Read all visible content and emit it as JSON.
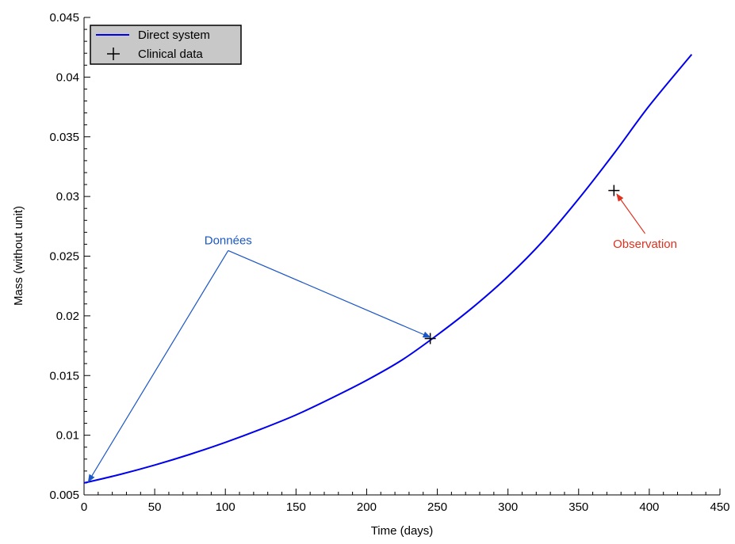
{
  "chart_data": {
    "type": "line",
    "xlabel": "Time (days)",
    "ylabel": "Mass (without unit)",
    "xlim": [
      0,
      450
    ],
    "ylim": [
      0.005,
      0.045
    ],
    "xticks": [
      0,
      50,
      100,
      150,
      200,
      250,
      300,
      350,
      400,
      450
    ],
    "yticks": [
      0.005,
      0.01,
      0.015,
      0.02,
      0.025,
      0.03,
      0.035,
      0.04,
      0.045
    ],
    "x_tick_labels": [
      "0",
      "50",
      "100",
      "150",
      "200",
      "250",
      "300",
      "350",
      "400",
      "450"
    ],
    "y_tick_labels": [
      "0.005",
      "0.01",
      "0.015",
      "0.02",
      "0.025",
      "0.03",
      "0.035",
      "0.04",
      "0.045"
    ],
    "grid": false,
    "legend_position": "top-left",
    "series": [
      {
        "name": "Direct system",
        "kind": "line",
        "color": "#0000ee",
        "x": [
          0,
          25,
          50,
          75,
          100,
          125,
          150,
          175,
          200,
          225,
          250,
          275,
          300,
          325,
          350,
          375,
          400,
          430
        ],
        "y": [
          0.006,
          0.0067,
          0.0075,
          0.0084,
          0.0094,
          0.0105,
          0.0117,
          0.0131,
          0.0146,
          0.0163,
          0.0184,
          0.0207,
          0.0233,
          0.0263,
          0.0298,
          0.0336,
          0.0376,
          0.0419
        ]
      },
      {
        "name": "Clinical data",
        "kind": "marker",
        "marker": "plus",
        "color": "#000000",
        "x": [
          245,
          375
        ],
        "y": [
          0.0181,
          0.0305
        ]
      }
    ],
    "annotations": [
      {
        "text": "Données",
        "color": "#1a56c4",
        "anchor": {
          "x": 102,
          "y": 0.026
        },
        "arrows_to": [
          {
            "x": 3,
            "y": 0.0061
          },
          {
            "x": 245,
            "y": 0.0182
          }
        ]
      },
      {
        "text": "Observation",
        "color": "#e0301e",
        "anchor": {
          "x": 397,
          "y": 0.0257
        },
        "arrows_to": [
          {
            "x": 377,
            "y": 0.0302
          }
        ]
      }
    ]
  }
}
